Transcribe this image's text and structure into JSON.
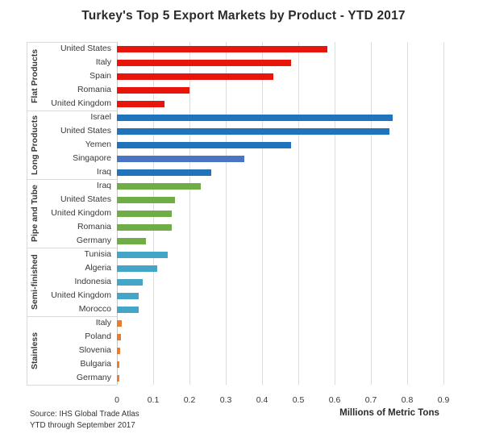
{
  "title": "Turkey's Top 5 Export Markets by Product - YTD 2017",
  "source": {
    "line1": "Source: IHS Global Trade Atlas",
    "line2": "YTD through September 2017"
  },
  "chart_data": {
    "type": "bar",
    "orientation": "horizontal",
    "title": "Turkey's Top 5 Export Markets by Product - YTD 2017",
    "xlabel": "Millions of Metric Tons",
    "ylabel": "",
    "unit": "millions of metric tons",
    "xlim": [
      0,
      0.9
    ],
    "grid": true,
    "legend": "none",
    "x_ticks": [
      "0",
      "0.1",
      "0.2",
      "0.3",
      "0.4",
      "0.5",
      "0.6",
      "0.7",
      "0.8",
      "0.9"
    ],
    "groups": [
      {
        "label": "Flat Products",
        "color": "#e8150d",
        "items": [
          {
            "country": "United States",
            "value": 0.58
          },
          {
            "country": "Italy",
            "value": 0.48
          },
          {
            "country": "Spain",
            "value": 0.43
          },
          {
            "country": "Romania",
            "value": 0.2
          },
          {
            "country": "United Kingdom",
            "value": 0.13
          }
        ]
      },
      {
        "label": "Long Products",
        "color": "#1f74bc",
        "items": [
          {
            "country": "Israel",
            "value": 0.76
          },
          {
            "country": "United States",
            "value": 0.75
          },
          {
            "country": "Yemen",
            "value": 0.48
          },
          {
            "country": "Singapore",
            "value": 0.35,
            "color": "#4a74c4"
          },
          {
            "country": "Iraq",
            "value": 0.26
          }
        ]
      },
      {
        "label": "Pipe and Tube",
        "color": "#70ad47",
        "items": [
          {
            "country": "Iraq",
            "value": 0.23
          },
          {
            "country": "United States",
            "value": 0.16
          },
          {
            "country": "United Kingdom",
            "value": 0.15
          },
          {
            "country": "Romania",
            "value": 0.15
          },
          {
            "country": "Germany",
            "value": 0.08
          }
        ]
      },
      {
        "label": "Semi-finished",
        "color": "#45a5c6",
        "items": [
          {
            "country": "Tunisia",
            "value": 0.14
          },
          {
            "country": "Algeria",
            "value": 0.11
          },
          {
            "country": "Indonesia",
            "value": 0.07
          },
          {
            "country": "United Kingdom",
            "value": 0.06
          },
          {
            "country": "Morocco",
            "value": 0.06
          }
        ]
      },
      {
        "label": "Stainless",
        "color": "#e87d31",
        "items": [
          {
            "country": "Italy",
            "value": 0.013
          },
          {
            "country": "Poland",
            "value": 0.01
          },
          {
            "country": "Slovenia",
            "value": 0.008
          },
          {
            "country": "Bulgaria",
            "value": 0.006
          },
          {
            "country": "Germany",
            "value": 0.006
          }
        ]
      }
    ]
  }
}
